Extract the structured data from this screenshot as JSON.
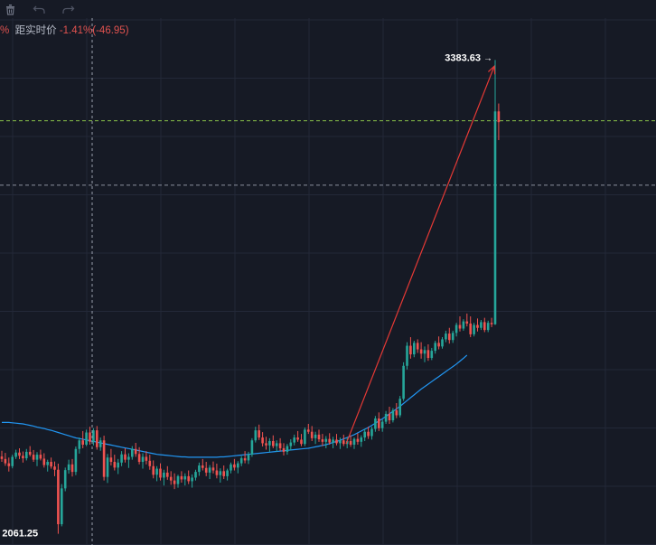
{
  "toolbar": {
    "icons": [
      "trash-icon",
      "undo-icon",
      "redo-icon"
    ]
  },
  "info": {
    "prefix": "%",
    "label": "距实时价",
    "change_pct": "-1.41%",
    "change_abs": "(-46.95)"
  },
  "colors": {
    "background": "#161a25",
    "grid": "#232838",
    "up": "#26a69a",
    "down": "#ef5350",
    "ma_line": "#2196f3",
    "arrow": "#e53935",
    "crosshair": "#9aa0ad",
    "green_dash": "#8bc34a",
    "gray_dash": "#8a8f9c"
  },
  "chart_data": {
    "type": "candlestick",
    "ylim": [
      2030,
      3450
    ],
    "price_labels": {
      "high": "3383.63",
      "low": "2061.25"
    },
    "high_value": 3383.63,
    "low_value": 2061.25,
    "horizontal_levels": [
      {
        "value": 3214,
        "style": "green-dash"
      },
      {
        "value": 3034,
        "style": "gray-dash"
      }
    ],
    "arrow": {
      "from_value": 2312,
      "to_value": 3366
    },
    "ohlc": [
      [
        2277,
        2293,
        2262,
        2270
      ],
      [
        2270,
        2287,
        2251,
        2258
      ],
      [
        2258,
        2274,
        2235,
        2250
      ],
      [
        2250,
        2282,
        2244,
        2276
      ],
      [
        2276,
        2296,
        2270,
        2288
      ],
      [
        2288,
        2300,
        2270,
        2279
      ],
      [
        2279,
        2291,
        2260,
        2272
      ],
      [
        2272,
        2298,
        2266,
        2290
      ],
      [
        2290,
        2306,
        2277,
        2282
      ],
      [
        2282,
        2295,
        2262,
        2268
      ],
      [
        2268,
        2289,
        2250,
        2282
      ],
      [
        2282,
        2296,
        2266,
        2271
      ],
      [
        2271,
        2286,
        2246,
        2253
      ],
      [
        2253,
        2268,
        2235,
        2262
      ],
      [
        2262,
        2274,
        2243,
        2249
      ],
      [
        2249,
        2263,
        2222,
        2240
      ],
      [
        2240,
        2257,
        2061.25,
        2088
      ],
      [
        2088,
        2200,
        2082,
        2188
      ],
      [
        2188,
        2246,
        2180,
        2239
      ],
      [
        2239,
        2268,
        2229,
        2255
      ],
      [
        2255,
        2270,
        2221,
        2234
      ],
      [
        2234,
        2305,
        2225,
        2298
      ],
      [
        2298,
        2330,
        2285,
        2322
      ],
      [
        2322,
        2348,
        2300,
        2310
      ],
      [
        2310,
        2352,
        2306,
        2344
      ],
      [
        2344,
        2360,
        2310,
        2318
      ],
      [
        2318,
        2356,
        2308,
        2350
      ],
      [
        2350,
        2362,
        2296,
        2303
      ],
      [
        2303,
        2330,
        2293,
        2322
      ],
      [
        2322,
        2335,
        2210,
        2220
      ],
      [
        2220,
        2284,
        2203,
        2274
      ],
      [
        2274,
        2298,
        2252,
        2262
      ],
      [
        2262,
        2282,
        2238,
        2246
      ],
      [
        2246,
        2270,
        2228,
        2260
      ],
      [
        2260,
        2292,
        2250,
        2283
      ],
      [
        2283,
        2300,
        2260,
        2268
      ],
      [
        2268,
        2286,
        2245,
        2276
      ],
      [
        2276,
        2306,
        2268,
        2298
      ],
      [
        2298,
        2315,
        2276,
        2284
      ],
      [
        2284,
        2303,
        2255,
        2262
      ],
      [
        2262,
        2286,
        2243,
        2276
      ],
      [
        2276,
        2292,
        2255,
        2265
      ],
      [
        2265,
        2282,
        2240,
        2250
      ],
      [
        2250,
        2266,
        2216,
        2226
      ],
      [
        2226,
        2250,
        2208,
        2243
      ],
      [
        2243,
        2258,
        2210,
        2218
      ],
      [
        2218,
        2240,
        2196,
        2232
      ],
      [
        2232,
        2250,
        2212,
        2220
      ],
      [
        2220,
        2236,
        2198,
        2210
      ],
      [
        2210,
        2230,
        2186,
        2200
      ],
      [
        2200,
        2226,
        2190,
        2222
      ],
      [
        2222,
        2236,
        2204,
        2213
      ],
      [
        2213,
        2230,
        2196,
        2222
      ],
      [
        2222,
        2238,
        2200,
        2208
      ],
      [
        2208,
        2227,
        2190,
        2218
      ],
      [
        2218,
        2240,
        2210,
        2234
      ],
      [
        2234,
        2260,
        2223,
        2252
      ],
      [
        2252,
        2270,
        2238,
        2245
      ],
      [
        2245,
        2262,
        2222,
        2232
      ],
      [
        2232,
        2253,
        2214,
        2246
      ],
      [
        2246,
        2263,
        2230,
        2238
      ],
      [
        2238,
        2257,
        2216,
        2225
      ],
      [
        2225,
        2244,
        2204,
        2236
      ],
      [
        2236,
        2252,
        2214,
        2222
      ],
      [
        2222,
        2243,
        2210,
        2238
      ],
      [
        2238,
        2260,
        2230,
        2255
      ],
      [
        2255,
        2270,
        2238,
        2246
      ],
      [
        2246,
        2264,
        2230,
        2258
      ],
      [
        2258,
        2278,
        2250,
        2272
      ],
      [
        2272,
        2292,
        2258,
        2266
      ],
      [
        2266,
        2290,
        2256,
        2282
      ],
      [
        2282,
        2328,
        2276,
        2322
      ],
      [
        2322,
        2360,
        2316,
        2350
      ],
      [
        2350,
        2366,
        2323,
        2330
      ],
      [
        2330,
        2345,
        2305,
        2314
      ],
      [
        2314,
        2332,
        2296,
        2308
      ],
      [
        2308,
        2328,
        2290,
        2320
      ],
      [
        2320,
        2336,
        2300,
        2306
      ],
      [
        2306,
        2322,
        2290,
        2314
      ],
      [
        2314,
        2328,
        2292,
        2300
      ],
      [
        2300,
        2314,
        2280,
        2290
      ],
      [
        2290,
        2312,
        2282,
        2306
      ],
      [
        2306,
        2325,
        2294,
        2316
      ],
      [
        2316,
        2338,
        2308,
        2330
      ],
      [
        2330,
        2348,
        2318,
        2324
      ],
      [
        2324,
        2340,
        2306,
        2312
      ],
      [
        2312,
        2358,
        2306,
        2352
      ],
      [
        2352,
        2368,
        2340,
        2346
      ],
      [
        2346,
        2362,
        2320,
        2328
      ],
      [
        2328,
        2346,
        2312,
        2338
      ],
      [
        2338,
        2352,
        2318,
        2325
      ],
      [
        2325,
        2340,
        2306,
        2318
      ],
      [
        2318,
        2334,
        2300,
        2326
      ],
      [
        2326,
        2342,
        2310,
        2316
      ],
      [
        2316,
        2332,
        2300,
        2324
      ],
      [
        2324,
        2340,
        2308,
        2314
      ],
      [
        2314,
        2330,
        2298,
        2322
      ],
      [
        2322,
        2338,
        2306,
        2312
      ],
      [
        2312,
        2330,
        2300,
        2320
      ],
      [
        2320,
        2336,
        2304,
        2310
      ],
      [
        2310,
        2330,
        2298,
        2326
      ],
      [
        2326,
        2342,
        2310,
        2318
      ],
      [
        2318,
        2336,
        2304,
        2330
      ],
      [
        2330,
        2354,
        2320,
        2346
      ],
      [
        2346,
        2360,
        2326,
        2334
      ],
      [
        2334,
        2360,
        2324,
        2354
      ],
      [
        2354,
        2390,
        2346,
        2383
      ],
      [
        2383,
        2400,
        2348,
        2356
      ],
      [
        2356,
        2380,
        2346,
        2374
      ],
      [
        2374,
        2404,
        2368,
        2396
      ],
      [
        2396,
        2416,
        2368,
        2378
      ],
      [
        2378,
        2412,
        2372,
        2406
      ],
      [
        2406,
        2426,
        2384,
        2392
      ],
      [
        2392,
        2446,
        2386,
        2438
      ],
      [
        2438,
        2540,
        2432,
        2530
      ],
      [
        2530,
        2596,
        2520,
        2586
      ],
      [
        2586,
        2610,
        2550,
        2562
      ],
      [
        2562,
        2600,
        2554,
        2594
      ],
      [
        2594,
        2604,
        2566,
        2576
      ],
      [
        2576,
        2596,
        2550,
        2564
      ],
      [
        2564,
        2584,
        2540,
        2574
      ],
      [
        2574,
        2590,
        2544,
        2552
      ],
      [
        2552,
        2580,
        2546,
        2572
      ],
      [
        2572,
        2600,
        2564,
        2594
      ],
      [
        2594,
        2612,
        2576,
        2584
      ],
      [
        2584,
        2610,
        2578,
        2604
      ],
      [
        2604,
        2628,
        2596,
        2620
      ],
      [
        2620,
        2636,
        2592,
        2602
      ],
      [
        2602,
        2628,
        2594,
        2622
      ],
      [
        2622,
        2650,
        2612,
        2644
      ],
      [
        2644,
        2668,
        2626,
        2634
      ],
      [
        2634,
        2660,
        2628,
        2654
      ],
      [
        2654,
        2676,
        2640,
        2648
      ],
      [
        2648,
        2668,
        2610,
        2618
      ],
      [
        2618,
        2650,
        2612,
        2644
      ],
      [
        2644,
        2662,
        2626,
        2636
      ],
      [
        2636,
        2658,
        2630,
        2652
      ],
      [
        2652,
        2664,
        2624,
        2630
      ],
      [
        2630,
        2656,
        2624,
        2650
      ],
      [
        2650,
        2664,
        2638,
        2646
      ],
      [
        2646,
        3383.63,
        2644,
        3240
      ],
      [
        3240,
        3262,
        3160,
        3210
      ]
    ],
    "ma": [
      2372,
      2372,
      2372,
      2371,
      2370,
      2369,
      2368,
      2366,
      2364,
      2362,
      2359,
      2357,
      2355,
      2352,
      2350,
      2347,
      2344,
      2341,
      2338,
      2335,
      2332,
      2329,
      2327,
      2325,
      2323,
      2321,
      2319,
      2317,
      2315,
      2313,
      2311,
      2309,
      2307,
      2305,
      2303,
      2301,
      2299,
      2297,
      2295,
      2293,
      2291,
      2289,
      2287,
      2285,
      2283,
      2282,
      2281,
      2280,
      2279,
      2278,
      2277,
      2276,
      2276,
      2275,
      2275,
      2275,
      2275,
      2275,
      2275,
      2275,
      2275,
      2275,
      2276,
      2276,
      2277,
      2278,
      2279,
      2280,
      2281,
      2282,
      2283,
      2284,
      2285,
      2286,
      2287,
      2288,
      2289,
      2290,
      2291,
      2292,
      2293,
      2294,
      2295,
      2296,
      2297,
      2298,
      2299,
      2300,
      2302,
      2304,
      2306,
      2308,
      2310,
      2313,
      2316,
      2319,
      2322,
      2326,
      2330,
      2334,
      2338,
      2343,
      2348,
      2353,
      2358,
      2364,
      2370,
      2376,
      2382,
      2389,
      2396,
      2403,
      2410,
      2417,
      2425,
      2433,
      2441,
      2449,
      2457,
      2465,
      2472,
      2479,
      2486,
      2493,
      2500,
      2507,
      2514,
      2521,
      2528,
      2535,
      2543,
      2551,
      2560
    ]
  }
}
